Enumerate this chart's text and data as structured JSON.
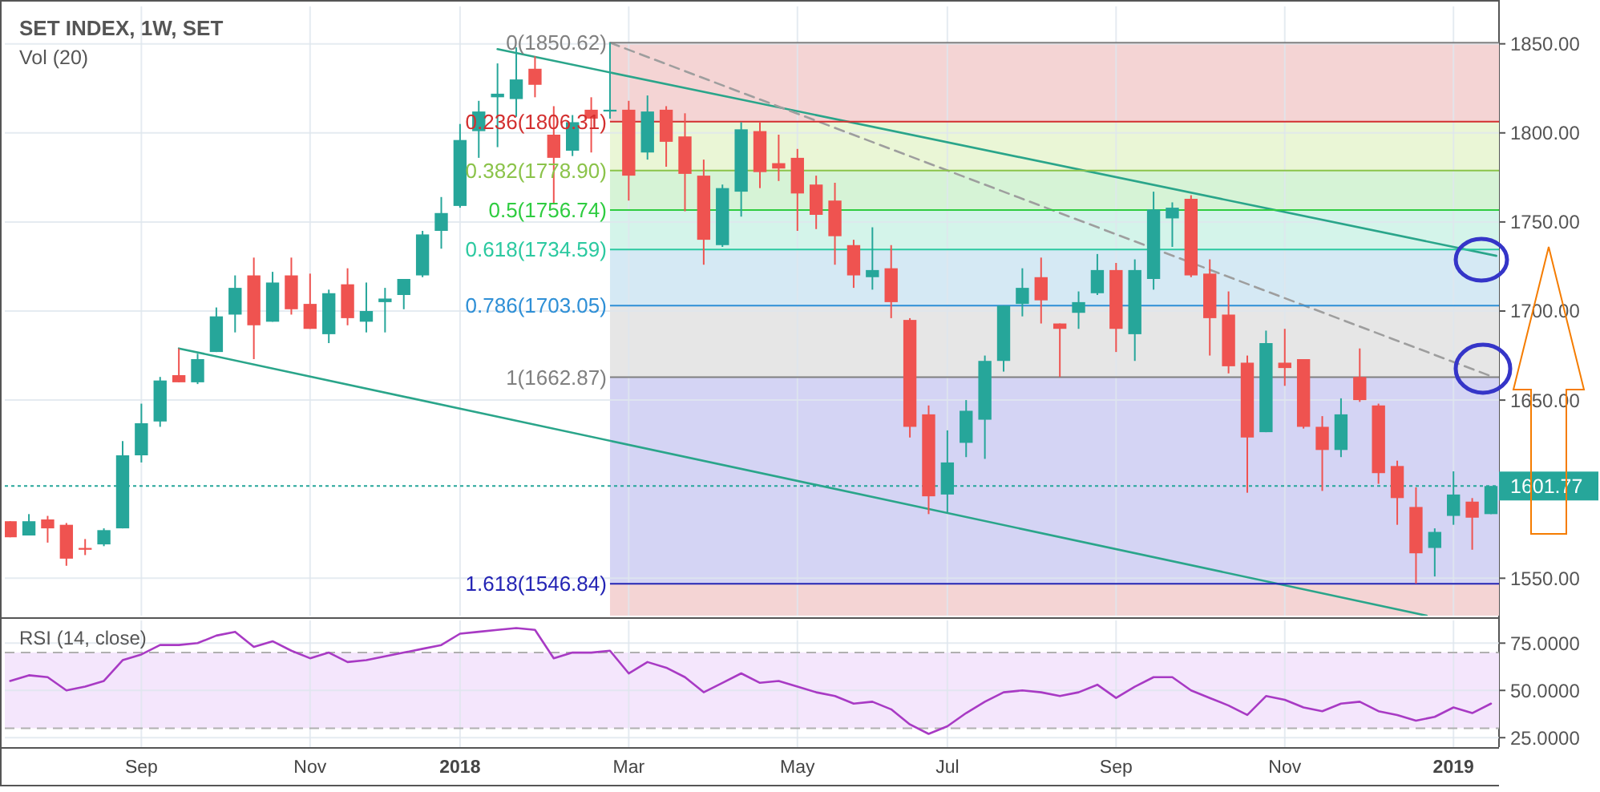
{
  "chart_data": [
    {
      "type": "candlestick",
      "title": "SET INDEX, 1W, SET",
      "subtitle": "Vol (20)",
      "x": [
        "2017-07-17",
        "2017-07-24",
        "2017-07-31",
        "2017-08-07",
        "2017-08-14",
        "2017-08-21",
        "2017-08-28",
        "2017-09-04",
        "2017-09-11",
        "2017-09-18",
        "2017-09-25",
        "2017-10-02",
        "2017-10-09",
        "2017-10-16",
        "2017-10-23",
        "2017-10-30",
        "2017-11-06",
        "2017-11-13",
        "2017-11-20",
        "2017-11-27",
        "2017-12-04",
        "2017-12-11",
        "2017-12-18",
        "2017-12-25",
        "2018-01-01",
        "2018-01-08",
        "2018-01-15",
        "2018-01-22",
        "2018-01-29",
        "2018-02-05",
        "2018-02-12",
        "2018-02-19",
        "2018-02-26",
        "2018-03-05",
        "2018-03-12",
        "2018-03-19",
        "2018-03-26",
        "2018-04-02",
        "2018-04-09",
        "2018-04-16",
        "2018-04-23",
        "2018-04-30",
        "2018-05-07",
        "2018-05-14",
        "2018-05-21",
        "2018-05-28",
        "2018-06-04",
        "2018-06-11",
        "2018-06-18",
        "2018-06-25",
        "2018-07-02",
        "2018-07-09",
        "2018-07-16",
        "2018-07-23",
        "2018-07-30",
        "2018-08-06",
        "2018-08-13",
        "2018-08-20",
        "2018-08-27",
        "2018-09-03",
        "2018-09-10",
        "2018-09-17",
        "2018-09-24",
        "2018-10-01",
        "2018-10-08",
        "2018-10-15",
        "2018-10-22",
        "2018-10-29",
        "2018-11-05",
        "2018-11-12",
        "2018-11-19",
        "2018-11-26",
        "2018-12-03",
        "2018-12-10",
        "2018-12-17",
        "2018-12-24",
        "2018-12-31",
        "2019-01-07",
        "2019-01-14",
        "2019-01-21"
      ],
      "ohlc": [
        [
          1582,
          1582,
          1573,
          1573
        ],
        [
          1574,
          1586,
          1574,
          1582
        ],
        [
          1583,
          1585,
          1570,
          1578
        ],
        [
          1580,
          1581,
          1557,
          1561
        ],
        [
          1567,
          1572,
          1563,
          1566
        ],
        [
          1569,
          1578,
          1568,
          1577
        ],
        [
          1578,
          1627,
          1578,
          1619
        ],
        [
          1619,
          1648,
          1615,
          1637
        ],
        [
          1638,
          1663,
          1635,
          1661
        ],
        [
          1664,
          1679,
          1660,
          1660
        ],
        [
          1660,
          1676,
          1659,
          1673
        ],
        [
          1677,
          1702,
          1677,
          1697
        ],
        [
          1698,
          1720,
          1688,
          1713
        ],
        [
          1720,
          1730,
          1673,
          1692
        ],
        [
          1694,
          1722,
          1694,
          1716
        ],
        [
          1720,
          1730,
          1698,
          1701
        ],
        [
          1704,
          1721,
          1690,
          1690
        ],
        [
          1687,
          1712,
          1682,
          1710
        ],
        [
          1715,
          1724,
          1692,
          1696
        ],
        [
          1694,
          1716,
          1688,
          1700
        ],
        [
          1705,
          1713,
          1688,
          1707
        ],
        [
          1709,
          1718,
          1701,
          1718
        ],
        [
          1720,
          1745,
          1719,
          1743
        ],
        [
          1745,
          1764,
          1735,
          1755
        ],
        [
          1759,
          1805,
          1758,
          1796
        ],
        [
          1801,
          1818,
          1786,
          1812
        ],
        [
          1820,
          1839,
          1792,
          1822
        ],
        [
          1819,
          1848,
          1809,
          1830
        ],
        [
          1836,
          1843,
          1820,
          1827
        ],
        [
          1799,
          1815,
          1760,
          1786
        ],
        [
          1790,
          1810,
          1787,
          1806
        ],
        [
          1813,
          1820,
          1789,
          1808
        ],
        [
          1812,
          1850.62,
          1808,
          1813
        ],
        [
          1813,
          1818,
          1762,
          1776
        ],
        [
          1789,
          1821,
          1785,
          1812
        ],
        [
          1813,
          1815,
          1781,
          1795
        ],
        [
          1798,
          1811,
          1756,
          1777
        ],
        [
          1776,
          1785,
          1726,
          1740
        ],
        [
          1737,
          1771,
          1736,
          1769
        ],
        [
          1767,
          1806,
          1753,
          1802
        ],
        [
          1801,
          1806,
          1769,
          1778
        ],
        [
          1783,
          1799,
          1773,
          1780
        ],
        [
          1786,
          1791,
          1745,
          1766
        ],
        [
          1771,
          1776,
          1746,
          1754
        ],
        [
          1762,
          1772,
          1726,
          1742
        ],
        [
          1737,
          1740,
          1713,
          1720
        ],
        [
          1719,
          1747,
          1712,
          1723
        ],
        [
          1724,
          1737,
          1696,
          1705
        ],
        [
          1695,
          1696,
          1629,
          1635
        ],
        [
          1642,
          1647,
          1586,
          1596
        ],
        [
          1597,
          1633,
          1587,
          1615
        ],
        [
          1626,
          1650,
          1618,
          1644
        ],
        [
          1639,
          1675,
          1617,
          1672
        ],
        [
          1672,
          1703,
          1666,
          1703
        ],
        [
          1704,
          1724,
          1697,
          1713
        ],
        [
          1719,
          1730,
          1693,
          1706
        ],
        [
          1693,
          1693,
          1663,
          1690
        ],
        [
          1699,
          1711,
          1690,
          1705
        ],
        [
          1710,
          1732,
          1709,
          1723
        ],
        [
          1723,
          1727,
          1677,
          1690
        ],
        [
          1687,
          1729,
          1672,
          1723
        ],
        [
          1718,
          1767,
          1712,
          1757
        ],
        [
          1752,
          1761,
          1736,
          1758
        ],
        [
          1763,
          1765,
          1719,
          1720
        ],
        [
          1721,
          1729,
          1675,
          1696
        ],
        [
          1698,
          1711,
          1665,
          1669
        ],
        [
          1671,
          1675,
          1598,
          1629
        ],
        [
          1632,
          1689,
          1632,
          1682
        ],
        [
          1671,
          1690,
          1658,
          1668
        ],
        [
          1673,
          1673,
          1634,
          1635
        ],
        [
          1635,
          1641,
          1599,
          1622
        ],
        [
          1622,
          1651,
          1618,
          1642
        ],
        [
          1663,
          1679,
          1649,
          1650
        ],
        [
          1647,
          1648,
          1603,
          1609
        ],
        [
          1613,
          1616,
          1580,
          1595
        ],
        [
          1590,
          1601,
          1547,
          1564
        ],
        [
          1567,
          1578,
          1551,
          1576
        ],
        [
          1585,
          1610,
          1580,
          1597
        ],
        [
          1593,
          1595,
          1566,
          1584
        ],
        [
          1586,
          1601.77,
          1586,
          1601.77
        ]
      ],
      "colors": [
        "#ef5350",
        "#26a69a",
        "#ef5350",
        "#ef5350",
        "#ef5350",
        "#26a69a",
        "#26a69a",
        "#26a69a",
        "#26a69a",
        "#ef5350",
        "#26a69a",
        "#26a69a",
        "#26a69a",
        "#ef5350",
        "#26a69a",
        "#ef5350",
        "#ef5350",
        "#26a69a",
        "#ef5350",
        "#26a69a",
        "#26a69a",
        "#26a69a",
        "#26a69a",
        "#26a69a",
        "#26a69a",
        "#26a69a",
        "#26a69a",
        "#26a69a",
        "#ef5350",
        "#ef5350",
        "#26a69a",
        "#ef5350",
        "#26a69a",
        "#ef5350",
        "#26a69a",
        "#ef5350",
        "#ef5350",
        "#ef5350",
        "#26a69a",
        "#26a69a",
        "#ef5350",
        "#ef5350",
        "#ef5350",
        "#ef5350",
        "#ef5350",
        "#ef5350",
        "#26a69a",
        "#ef5350",
        "#ef5350",
        "#ef5350",
        "#26a69a",
        "#26a69a",
        "#26a69a",
        "#26a69a",
        "#26a69a",
        "#ef5350",
        "#ef5350",
        "#26a69a",
        "#26a69a",
        "#ef5350",
        "#26a69a",
        "#26a69a",
        "#26a69a",
        "#ef5350",
        "#ef5350",
        "#ef5350",
        "#ef5350",
        "#26a69a",
        "#ef5350",
        "#ef5350",
        "#ef5350",
        "#26a69a",
        "#ef5350",
        "#ef5350",
        "#ef5350",
        "#ef5350",
        "#26a69a",
        "#26a69a",
        "#ef5350",
        "#26a69a"
      ],
      "series": [
        {
          "type": "line",
          "x": [
            "2018-01-15",
            "2019-01-23"
          ],
          "values": [
            1847,
            1731
          ],
          "color": "#2aa58a"
        },
        {
          "type": "line",
          "x": [
            "2017-09-18",
            "2018-12-28"
          ],
          "values": [
            1679,
            1529
          ],
          "color": "#2aa58a"
        },
        {
          "type": "line",
          "x": [
            "2018-02-26",
            "2019-01-22"
          ],
          "values": [
            1850.62,
            1662.87
          ],
          "color": "#9e9e9e",
          "line_style": "dashed"
        }
      ],
      "xlim": [
        "2017-07-15",
        "2019-01-24"
      ],
      "xticks": [
        {
          "value": "2017-09-04",
          "label": null
        },
        {
          "value": "2017-11-06",
          "label": null
        },
        {
          "value": "2018-01-01",
          "label": null
        },
        {
          "value": "2018-03-05",
          "label": null
        },
        {
          "value": "2018-05-07",
          "label": null
        },
        {
          "value": "2018-07-02",
          "label": null
        },
        {
          "value": "2018-09-03",
          "label": null
        },
        {
          "value": "2018-11-05",
          "label": null
        },
        {
          "value": "2019-01-07",
          "label": null
        }
      ],
      "ylim": [
        1529,
        1871
      ],
      "yticks": [
        {
          "value": 1550,
          "label": "1550.00"
        },
        {
          "value": 1650,
          "label": "1650.00"
        },
        {
          "value": 1700,
          "label": "1700.00"
        },
        {
          "value": 1750,
          "label": "1750.00"
        },
        {
          "value": 1800,
          "label": "1800.00"
        },
        {
          "value": 1850,
          "label": "1850.00"
        }
      ],
      "bands": [
        {
          "axis": "y",
          "from": 1806.31,
          "to": 1850.62,
          "color": "#f4d4d4"
        },
        {
          "axis": "y",
          "from": 1778.9,
          "to": 1806.31,
          "color": "#eaf6d6"
        },
        {
          "axis": "y",
          "from": 1756.74,
          "to": 1778.9,
          "color": "#d6f3d6"
        },
        {
          "axis": "y",
          "from": 1734.59,
          "to": 1756.74,
          "color": "#d4f4ea"
        },
        {
          "axis": "y",
          "from": 1703.05,
          "to": 1734.59,
          "color": "#d5e9f4"
        },
        {
          "axis": "y",
          "from": 1662.87,
          "to": 1703.05,
          "color": "#e6e6e6"
        },
        {
          "axis": "y",
          "from": 1546.84,
          "to": 1662.87,
          "color": "#d4d4f4"
        },
        {
          "axis": "y",
          "from": 1529,
          "to": 1546.84,
          "color": "#f4d4d4"
        }
      ],
      "ref_lines": [
        {
          "axis": "y",
          "value": 1850.62,
          "label": "0(1850.62)",
          "color": "#808080"
        },
        {
          "axis": "y",
          "value": 1806.31,
          "label": "0.236(1806.31)",
          "color": "#d32f2f"
        },
        {
          "axis": "y",
          "value": 1778.9,
          "label": "0.382(1778.90)",
          "color": "#8bc34a"
        },
        {
          "axis": "y",
          "value": 1756.74,
          "label": "0.5(1756.74)",
          "color": "#2ecc40"
        },
        {
          "axis": "y",
          "value": 1734.59,
          "label": "0.618(1734.59)",
          "color": "#2bc9a0"
        },
        {
          "axis": "y",
          "value": 1703.05,
          "label": "0.786(1703.05)",
          "color": "#2e8fd6"
        },
        {
          "axis": "y",
          "value": 1662.87,
          "label": "1(1662.87)",
          "color": "#808080"
        },
        {
          "axis": "y",
          "value": 1546.84,
          "label": "1.618(1546.84)",
          "color": "#2424b4"
        },
        {
          "axis": "y",
          "value": 1601.77,
          "label": "1601.77",
          "color": "#26a69a",
          "line_style": "dotted"
        }
      ],
      "grid": true,
      "tick_labels": "y"
    },
    {
      "type": "line",
      "title": "RSI (14, close)",
      "color": "#a83ac4",
      "x": [
        "2017-07-17",
        "2017-07-24",
        "2017-07-31",
        "2017-08-07",
        "2017-08-14",
        "2017-08-21",
        "2017-08-28",
        "2017-09-04",
        "2017-09-11",
        "2017-09-18",
        "2017-09-25",
        "2017-10-02",
        "2017-10-09",
        "2017-10-16",
        "2017-10-23",
        "2017-10-30",
        "2017-11-06",
        "2017-11-13",
        "2017-11-20",
        "2017-11-27",
        "2017-12-04",
        "2017-12-11",
        "2017-12-18",
        "2017-12-25",
        "2018-01-01",
        "2018-01-08",
        "2018-01-15",
        "2018-01-22",
        "2018-01-29",
        "2018-02-05",
        "2018-02-12",
        "2018-02-19",
        "2018-02-26",
        "2018-03-05",
        "2018-03-12",
        "2018-03-19",
        "2018-03-26",
        "2018-04-02",
        "2018-04-09",
        "2018-04-16",
        "2018-04-23",
        "2018-04-30",
        "2018-05-07",
        "2018-05-14",
        "2018-05-21",
        "2018-05-28",
        "2018-06-04",
        "2018-06-11",
        "2018-06-18",
        "2018-06-25",
        "2018-07-02",
        "2018-07-09",
        "2018-07-16",
        "2018-07-23",
        "2018-07-30",
        "2018-08-06",
        "2018-08-13",
        "2018-08-20",
        "2018-08-27",
        "2018-09-03",
        "2018-09-10",
        "2018-09-17",
        "2018-09-24",
        "2018-10-01",
        "2018-10-08",
        "2018-10-15",
        "2018-10-22",
        "2018-10-29",
        "2018-11-05",
        "2018-11-12",
        "2018-11-19",
        "2018-11-26",
        "2018-12-03",
        "2018-12-10",
        "2018-12-17",
        "2018-12-24",
        "2018-12-31",
        "2019-01-07",
        "2019-01-14",
        "2019-01-21"
      ],
      "values": [
        55,
        58,
        57,
        50,
        52,
        55,
        66,
        69,
        74,
        74,
        75,
        79,
        81,
        73,
        76,
        71,
        67,
        70,
        65,
        66,
        68,
        70,
        72,
        74,
        80,
        81,
        82,
        83,
        82,
        67,
        70,
        70,
        71,
        59,
        65,
        62,
        57,
        49,
        54,
        59,
        54,
        55,
        52,
        49,
        47,
        43,
        44,
        40,
        32,
        27,
        31,
        38,
        44,
        49,
        50,
        49,
        47,
        49,
        53,
        46,
        52,
        57,
        57,
        50,
        46,
        42,
        37,
        47,
        45,
        41,
        39,
        43,
        44,
        39,
        37,
        34,
        36,
        41,
        38,
        43
      ],
      "xlim": [
        "2017-07-15",
        "2019-01-24"
      ],
      "xticks": [
        {
          "value": "2017-09-04",
          "label": "Sep"
        },
        {
          "value": "2017-11-06",
          "label": "Nov"
        },
        {
          "value": "2018-01-01",
          "label": "2018"
        },
        {
          "value": "2018-03-05",
          "label": "Mar"
        },
        {
          "value": "2018-05-07",
          "label": "May"
        },
        {
          "value": "2018-07-02",
          "label": "Jul"
        },
        {
          "value": "2018-09-03",
          "label": "Sep"
        },
        {
          "value": "2018-11-05",
          "label": "Nov"
        },
        {
          "value": "2019-01-07",
          "label": "2019"
        }
      ],
      "ylim": [
        20,
        87
      ],
      "yticks": [
        {
          "value": 25,
          "label": "25.0000"
        },
        {
          "value": 50,
          "label": "50.0000"
        },
        {
          "value": 75,
          "label": "75.0000"
        }
      ],
      "bands": [
        {
          "axis": "y",
          "from": 30,
          "to": 70,
          "color": "#f4e6fc"
        }
      ],
      "ref_lines": [
        {
          "axis": "y",
          "value": 70,
          "color": "#b0b0b0",
          "line_style": "dashed"
        },
        {
          "axis": "y",
          "value": 30,
          "color": "#b0b0b0",
          "line_style": "dashed"
        }
      ],
      "grid": true
    }
  ]
}
